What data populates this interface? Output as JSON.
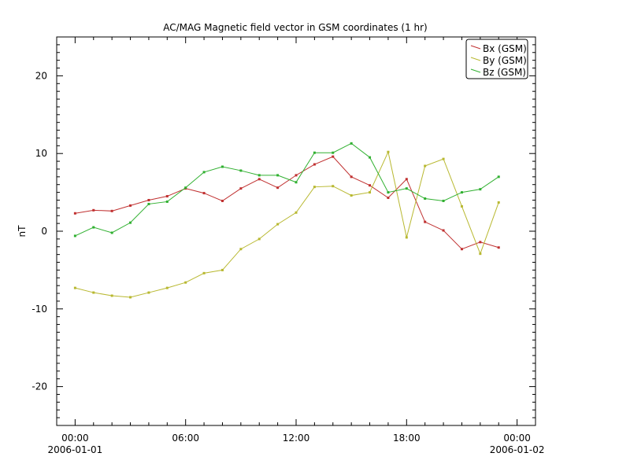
{
  "chart_data": {
    "type": "line",
    "title": "AC/MAG  Magnetic field vector in GSM coordinates (1 hr)",
    "xlabel": "",
    "ylabel": "nT",
    "xlim_hours": [
      -1,
      25
    ],
    "ylim": [
      -25,
      25
    ],
    "grid": false,
    "legend_position": "top-right",
    "x_ticks": [
      {
        "hour": 0,
        "label": "00:00",
        "sublabel": "2006-01-01"
      },
      {
        "hour": 6,
        "label": "06:00",
        "sublabel": ""
      },
      {
        "hour": 12,
        "label": "12:00",
        "sublabel": ""
      },
      {
        "hour": 18,
        "label": "18:00",
        "sublabel": ""
      },
      {
        "hour": 24,
        "label": "00:00",
        "sublabel": "2006-01-02"
      }
    ],
    "y_ticks": [
      20,
      10,
      0,
      -10,
      -20
    ],
    "y_tick_labels": [
      "20",
      "10",
      "0",
      "-10",
      "-20"
    ],
    "x_hours": [
      0,
      1,
      2,
      3,
      4,
      5,
      6,
      7,
      8,
      9,
      10,
      11,
      12,
      13,
      14,
      15,
      16,
      17,
      18,
      19,
      20,
      21,
      22,
      23
    ],
    "series": [
      {
        "name": "Bx (GSM)",
        "color": "#c03030",
        "values": [
          2.3,
          2.7,
          2.6,
          3.3,
          4.0,
          4.5,
          5.5,
          4.9,
          3.9,
          5.5,
          6.7,
          5.6,
          7.2,
          8.6,
          9.6,
          7.0,
          5.9,
          4.3,
          6.7,
          1.2,
          0.1,
          -2.3,
          -1.4,
          -2.1
        ]
      },
      {
        "name": "By (GSM)",
        "color": "#b8b830",
        "values": [
          -7.3,
          -7.9,
          -8.3,
          -8.5,
          -7.9,
          -7.3,
          -6.6,
          -5.4,
          -5.0,
          -2.3,
          -1.0,
          0.9,
          2.4,
          5.7,
          5.8,
          4.6,
          5.0,
          10.2,
          -0.8,
          8.4,
          9.3,
          3.2,
          -2.9,
          3.7
        ]
      },
      {
        "name": "Bz (GSM)",
        "color": "#30b030",
        "values": [
          -0.6,
          0.5,
          -0.2,
          1.1,
          3.5,
          3.8,
          5.6,
          7.6,
          8.3,
          7.8,
          7.2,
          7.2,
          6.3,
          10.1,
          10.1,
          11.3,
          9.5,
          5.0,
          5.5,
          4.2,
          3.9,
          5.0,
          5.4,
          7.0
        ]
      }
    ]
  }
}
